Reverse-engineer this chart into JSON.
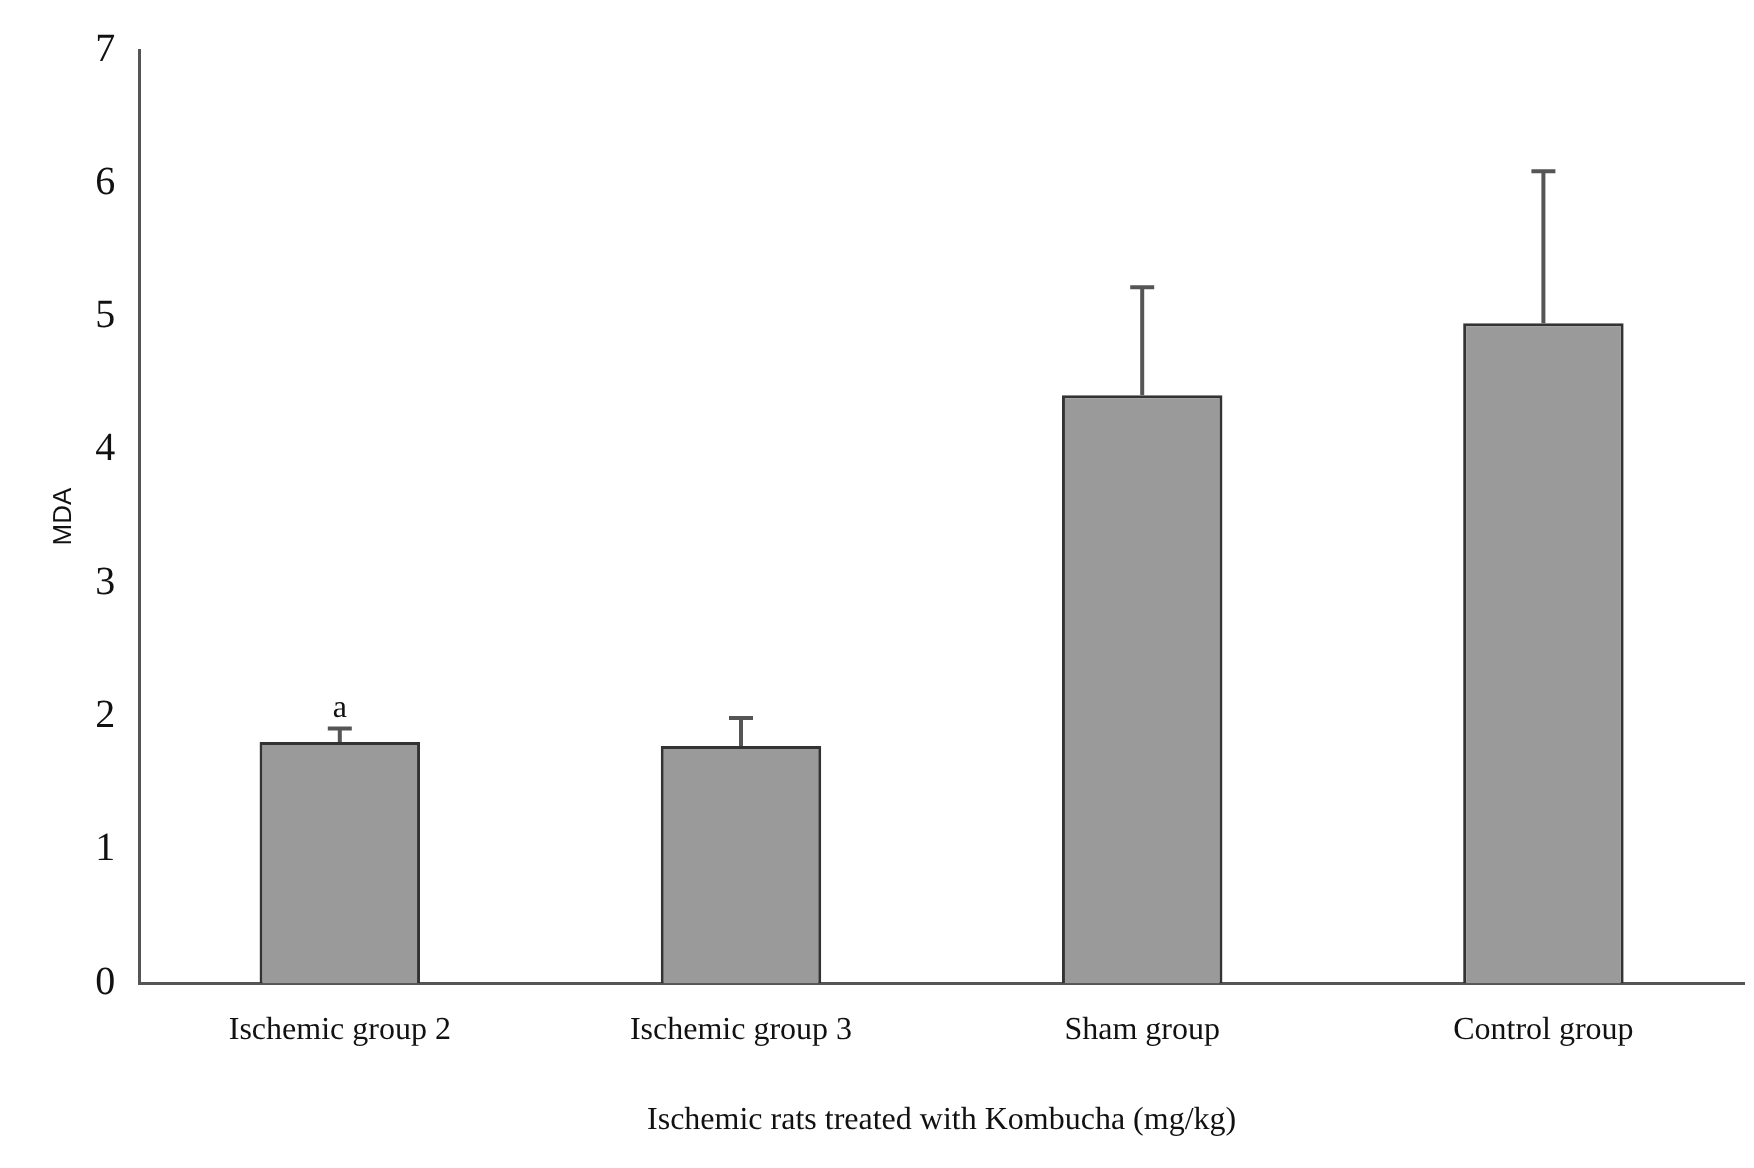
{
  "chart_data": {
    "type": "bar",
    "xlabel": "Ischemic rats treated with Kombucha (mg/kg)",
    "ylabel": "MDA",
    "categories": [
      "Ischemic group 2",
      "Ischemic group 3",
      "Sham group",
      "Control group"
    ],
    "values": [
      1.81,
      1.78,
      4.41,
      4.95
    ],
    "errors": [
      [
        1.81,
        1.91
      ],
      [
        1.78,
        1.99
      ],
      [
        4.41,
        5.22
      ],
      [
        4.95,
        6.09
      ]
    ],
    "color": "#9a9a9a",
    "ylim": [
      0,
      7
    ],
    "yticks": [
      0,
      1,
      2,
      3,
      4,
      5,
      6,
      7
    ],
    "grid": false,
    "legend": false,
    "annotations": [
      {
        "text": "a",
        "x": "Ischemic group 2",
        "y": 1.91
      }
    ]
  }
}
